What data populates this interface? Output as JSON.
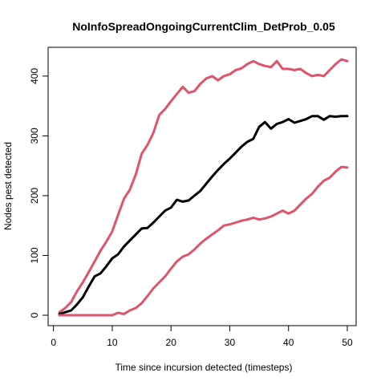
{
  "chart_data": {
    "type": "line",
    "title": "NoInfoSpreadOngoingCurrentClim_DetProb_0.05",
    "xlabel": "Time since incursion detected (timesteps)",
    "ylabel": "Nodes pest detected",
    "xlim": [
      1,
      50
    ],
    "ylim": [
      0,
      432
    ],
    "x_ticks": [
      0,
      10,
      20,
      30,
      40,
      50
    ],
    "y_ticks": [
      0,
      100,
      200,
      300,
      400
    ],
    "grid": false,
    "x": [
      1,
      2,
      3,
      4,
      5,
      6,
      7,
      8,
      9,
      10,
      11,
      12,
      13,
      14,
      15,
      16,
      17,
      18,
      19,
      20,
      21,
      22,
      23,
      24,
      25,
      26,
      27,
      28,
      29,
      30,
      31,
      32,
      33,
      34,
      35,
      36,
      37,
      38,
      39,
      40,
      41,
      42,
      43,
      44,
      45,
      46,
      47,
      48,
      49,
      50
    ],
    "series": [
      {
        "color": "#DF536B",
        "width": 3,
        "values": [
          5,
          12,
          22,
          40,
          55,
          72,
          90,
          108,
          123,
          140,
          168,
          195,
          210,
          235,
          270,
          285,
          305,
          335,
          345,
          358,
          370,
          382,
          372,
          375,
          387,
          396,
          400,
          393,
          400,
          403,
          410,
          413,
          420,
          425,
          420,
          417,
          415,
          425,
          412,
          412,
          410,
          412,
          405,
          400,
          402,
          400,
          410,
          420,
          428,
          425
        ]
      },
      {
        "color": "#000000",
        "width": 3,
        "values": [
          2,
          5,
          8,
          18,
          30,
          48,
          65,
          70,
          82,
          95,
          102,
          115,
          125,
          135,
          145,
          146,
          155,
          165,
          175,
          180,
          193,
          190,
          192,
          200,
          208,
          220,
          232,
          243,
          253,
          262,
          272,
          282,
          290,
          295,
          315,
          323,
          312,
          320,
          323,
          328,
          322,
          325,
          328,
          333,
          333,
          327,
          333,
          332,
          333,
          333
        ]
      },
      {
        "color": "#DF536B",
        "width": 3,
        "values": [
          0,
          0,
          0,
          0,
          0,
          0,
          0,
          0,
          0,
          0,
          4,
          2,
          8,
          12,
          20,
          32,
          45,
          55,
          65,
          78,
          90,
          98,
          102,
          110,
          120,
          128,
          135,
          142,
          150,
          152,
          155,
          158,
          160,
          163,
          160,
          162,
          165,
          170,
          175,
          170,
          175,
          185,
          195,
          203,
          215,
          225,
          230,
          240,
          248,
          247
        ]
      }
    ]
  }
}
